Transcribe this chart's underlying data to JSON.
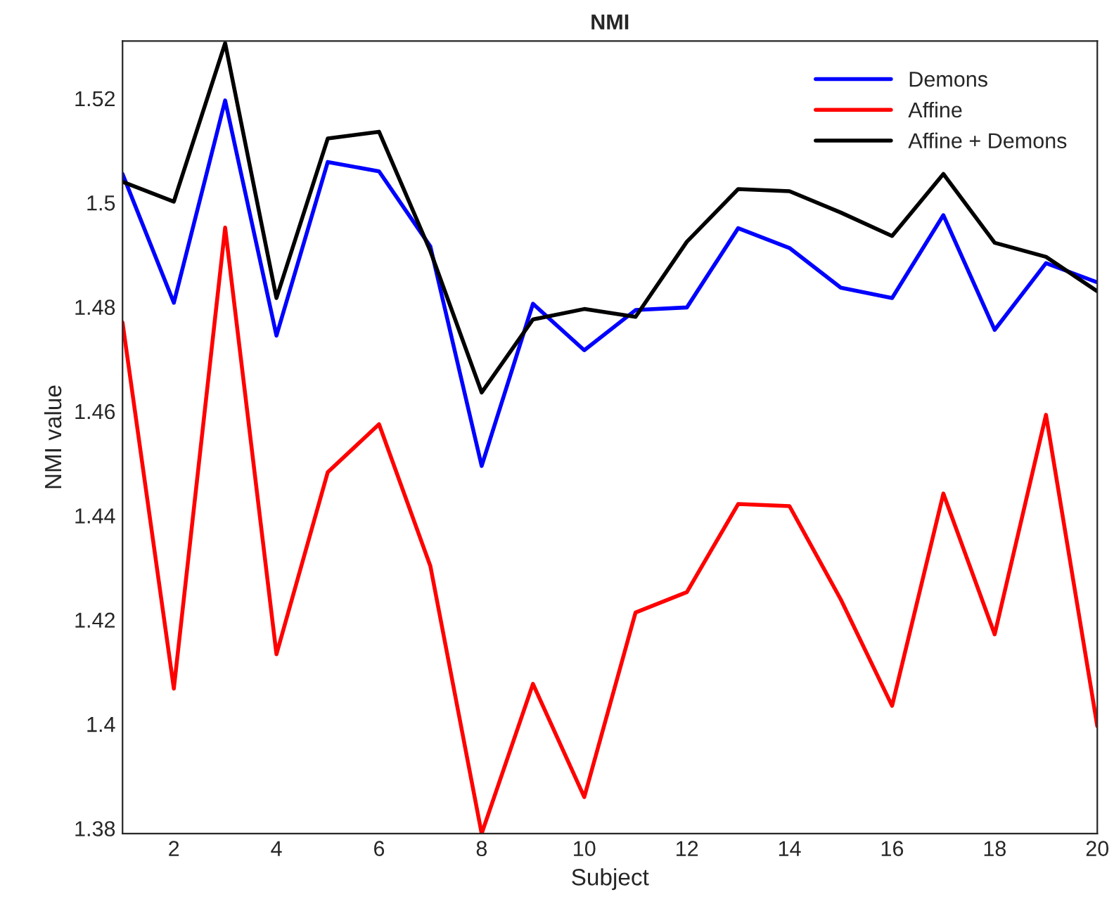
{
  "chart_data": {
    "type": "line",
    "title": "NMI",
    "xlabel": "Subject",
    "ylabel": "NMI value",
    "x": [
      1,
      2,
      3,
      4,
      5,
      6,
      7,
      8,
      9,
      10,
      11,
      12,
      13,
      14,
      15,
      16,
      17,
      18,
      19,
      20
    ],
    "series": [
      {
        "name": "Demons",
        "color": "#0000ff",
        "values": [
          1.5055,
          1.4808,
          1.5196,
          1.4745,
          1.5078,
          1.506,
          1.4916,
          1.4495,
          1.4806,
          1.4717,
          1.4794,
          1.4799,
          1.4951,
          1.4913,
          1.4837,
          1.4817,
          1.4976,
          1.4756,
          1.4884,
          1.4847
        ]
      },
      {
        "name": "Affine",
        "color": "#ff0000",
        "values": [
          1.477,
          1.4068,
          1.4952,
          1.4134,
          1.4483,
          1.4575,
          1.4303,
          1.379,
          1.4077,
          1.386,
          1.4214,
          1.4253,
          1.4422,
          1.4418,
          1.4239,
          1.4035,
          1.4442,
          1.4172,
          1.4593,
          1.3996
        ]
      },
      {
        "name": "Affine + Demons",
        "color": "#000000",
        "values": [
          1.504,
          1.5002,
          1.5306,
          1.4817,
          1.5123,
          1.5136,
          1.4907,
          1.4636,
          1.4776,
          1.4796,
          1.4781,
          1.4925,
          1.5026,
          1.5022,
          1.4981,
          1.4936,
          1.5055,
          1.4923,
          1.4896,
          1.483
        ]
      }
    ],
    "xlim": [
      1,
      20
    ],
    "xticks": [
      2,
      4,
      6,
      8,
      10,
      12,
      14,
      16,
      18,
      20
    ],
    "ylim": [
      1.379,
      1.531
    ],
    "yticks": [
      1.38,
      {
        "value": 1.4,
        "label": "1.4"
      },
      1.42,
      1.44,
      1.46,
      1.48,
      {
        "value": 1.5,
        "label": "1.5"
      },
      1.52
    ],
    "grid": false,
    "legend": "top right",
    "line_style": "solid"
  }
}
